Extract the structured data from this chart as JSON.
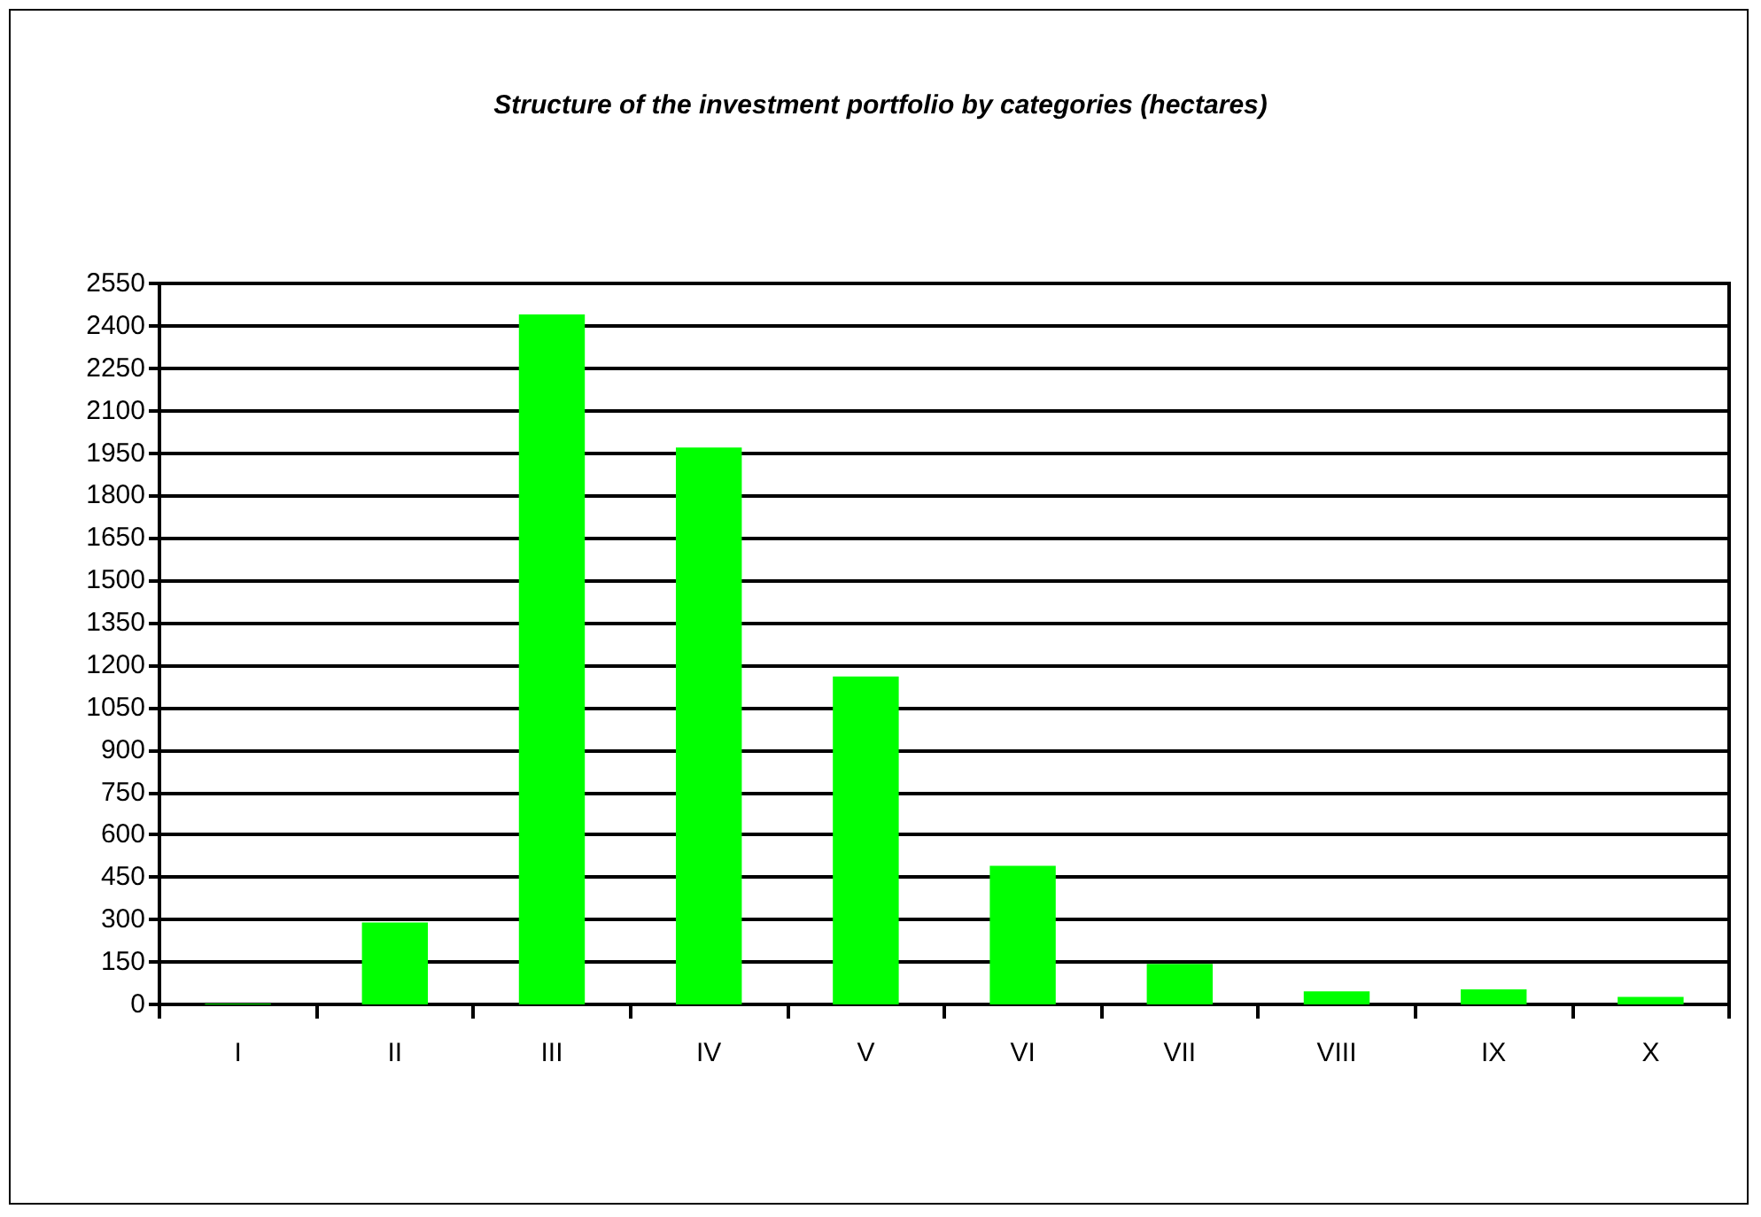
{
  "chart_data": {
    "type": "bar",
    "title": "Structure of the investment portfolio by categories (hectares)",
    "categories": [
      "I",
      "II",
      "III",
      "IV",
      "V",
      "VI",
      "VII",
      "VIII",
      "IX",
      "X"
    ],
    "values": [
      3,
      290,
      2440,
      1970,
      1160,
      490,
      143,
      46,
      53,
      27
    ],
    "color": "#00ff00",
    "ylim": [
      0,
      2550
    ],
    "yticks": [
      0,
      150,
      300,
      450,
      600,
      750,
      900,
      1050,
      1200,
      1350,
      1500,
      1650,
      1800,
      1950,
      2100,
      2250,
      2400,
      2550
    ],
    "grid": "y"
  }
}
